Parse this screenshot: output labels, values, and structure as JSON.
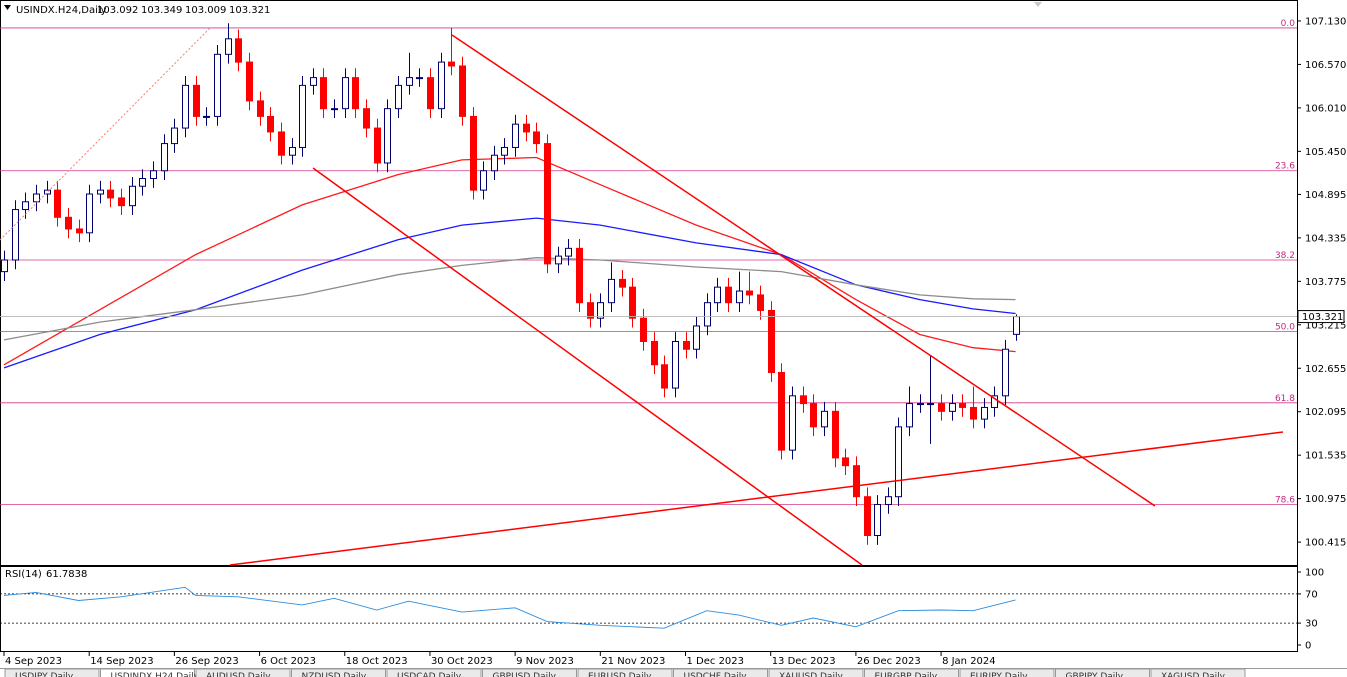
{
  "chart_data": {
    "type": "candlestick",
    "title": "USINDX.H24,Daily",
    "up_color": "#ffffff",
    "up_border": "#00006e",
    "down_color": "#ff0000",
    "ylim": [
      100.12,
      107.4
    ],
    "yticks": [
      {
        "value": 107.13,
        "label": "107.130"
      },
      {
        "value": 106.57,
        "label": "106.570"
      },
      {
        "value": 106.01,
        "label": "106.010"
      },
      {
        "value": 105.45,
        "label": "105.450"
      },
      104.895,
      104.335,
      103.775,
      103.215,
      102.655,
      {
        "value": 102.095,
        "label": "102.095"
      },
      101.535,
      100.975,
      100.415
    ],
    "xlim": [
      -0.4,
      121.4
    ],
    "xticks": [
      {
        "value": 0,
        "label": "4 Sep 2023"
      },
      {
        "value": 8,
        "label": "14 Sep 2023"
      },
      {
        "value": 16,
        "label": "26 Sep 2023"
      },
      {
        "value": 24,
        "label": "6 Oct 2023"
      },
      {
        "value": 32,
        "label": "18 Oct 2023"
      },
      {
        "value": 40,
        "label": "30 Oct 2023"
      },
      {
        "value": 48,
        "label": "9 Nov 2023"
      },
      {
        "value": 56,
        "label": "21 Nov 2023"
      },
      {
        "value": 64,
        "label": "1 Dec 2023"
      },
      {
        "value": 72,
        "label": "13 Dec 2023"
      },
      {
        "value": 80,
        "label": "26 Dec 2023"
      },
      {
        "value": 88,
        "label": "8 Jan 2024"
      }
    ],
    "open": [
      103.9,
      104.05,
      104.7,
      104.8,
      104.9,
      104.95,
      104.6,
      104.45,
      104.4,
      104.9,
      104.95,
      104.85,
      104.75,
      105.0,
      105.1,
      105.2,
      105.55,
      105.75,
      106.3,
      105.9,
      105.9,
      106.7,
      106.9,
      106.6,
      106.1,
      105.9,
      105.7,
      105.4,
      105.5,
      106.3,
      106.4,
      106.0,
      106.0,
      106.4,
      106.0,
      105.75,
      105.3,
      106.0,
      106.3,
      106.4,
      106.4,
      106.0,
      106.6,
      106.55,
      105.9,
      104.95,
      105.2,
      105.4,
      105.5,
      105.8,
      105.7,
      105.55,
      104.0,
      104.1,
      104.2,
      103.5,
      103.3,
      103.5,
      103.8,
      103.7,
      103.3,
      103.0,
      102.7,
      102.4,
      103.0,
      102.9,
      103.2,
      103.5,
      103.7,
      103.5,
      103.65,
      103.6,
      103.4,
      102.6,
      101.6,
      102.3,
      102.2,
      101.9,
      102.1,
      101.5,
      101.4,
      101.0,
      100.5,
      100.9,
      101.0,
      101.9,
      102.2,
      102.2,
      102.2,
      102.1,
      102.2,
      102.15,
      102.0,
      102.15,
      102.3,
      103.092
    ],
    "high": [
      104.17,
      104.82,
      104.92,
      105.02,
      105.07,
      105.07,
      104.72,
      104.57,
      105.02,
      105.07,
      105.07,
      104.97,
      105.12,
      105.22,
      105.32,
      105.67,
      105.87,
      106.42,
      106.42,
      106.02,
      106.82,
      107.1,
      107.02,
      106.72,
      106.22,
      106.02,
      105.82,
      105.62,
      106.42,
      106.52,
      106.52,
      106.12,
      106.52,
      106.52,
      106.12,
      105.87,
      106.12,
      106.42,
      106.72,
      106.52,
      106.52,
      106.72,
      107.04,
      106.67,
      106.02,
      105.32,
      105.52,
      105.62,
      105.92,
      105.92,
      105.82,
      105.67,
      104.22,
      104.32,
      104.32,
      103.62,
      103.62,
      104.02,
      103.92,
      103.82,
      103.42,
      103.12,
      102.82,
      103.12,
      103.12,
      103.32,
      103.62,
      103.82,
      103.82,
      103.9,
      103.9,
      103.72,
      103.52,
      102.72,
      102.42,
      102.42,
      102.32,
      102.22,
      102.22,
      101.62,
      101.52,
      101.12,
      101.02,
      101.12,
      102.02,
      102.42,
      102.32,
      102.82,
      102.32,
      102.32,
      102.32,
      102.42,
      102.27,
      102.42,
      103.02,
      103.349
    ],
    "low": [
      103.78,
      103.93,
      104.58,
      104.68,
      104.78,
      104.48,
      104.33,
      104.28,
      104.28,
      104.78,
      104.73,
      104.63,
      104.63,
      104.88,
      104.98,
      105.08,
      105.43,
      105.63,
      105.78,
      105.78,
      105.78,
      106.58,
      106.48,
      105.98,
      105.78,
      105.58,
      105.28,
      105.28,
      105.38,
      106.18,
      105.88,
      105.88,
      105.88,
      105.88,
      105.63,
      105.18,
      105.18,
      105.88,
      106.18,
      106.28,
      105.88,
      105.88,
      106.43,
      105.78,
      104.83,
      104.83,
      105.08,
      105.28,
      105.38,
      105.58,
      105.43,
      103.88,
      103.88,
      103.98,
      103.38,
      103.18,
      103.18,
      103.38,
      103.58,
      103.18,
      102.88,
      102.58,
      102.28,
      102.28,
      102.78,
      102.78,
      103.08,
      103.38,
      103.38,
      103.38,
      103.48,
      103.28,
      102.48,
      101.48,
      101.48,
      102.08,
      101.78,
      101.78,
      101.38,
      101.28,
      100.88,
      100.38,
      100.38,
      100.78,
      100.88,
      101.78,
      102.08,
      101.68,
      101.98,
      101.98,
      102.03,
      101.88,
      101.88,
      102.03,
      102.18,
      103.009
    ],
    "close": [
      104.05,
      104.7,
      104.8,
      104.9,
      104.95,
      104.6,
      104.45,
      104.4,
      104.9,
      104.95,
      104.85,
      104.75,
      105.0,
      105.1,
      105.2,
      105.55,
      105.75,
      106.3,
      105.9,
      105.9,
      106.7,
      106.9,
      106.6,
      106.1,
      105.9,
      105.7,
      105.4,
      105.5,
      106.3,
      106.4,
      106.0,
      106.0,
      106.4,
      106.0,
      105.75,
      105.3,
      106.0,
      106.3,
      106.4,
      106.4,
      106.0,
      106.6,
      106.55,
      105.9,
      104.95,
      105.2,
      105.4,
      105.5,
      105.8,
      105.7,
      105.55,
      104.0,
      104.1,
      104.2,
      103.5,
      103.3,
      103.5,
      103.8,
      103.7,
      103.3,
      103.0,
      102.7,
      102.4,
      103.0,
      102.9,
      103.2,
      103.5,
      103.7,
      103.5,
      103.65,
      103.6,
      103.4,
      102.6,
      101.6,
      102.3,
      102.2,
      101.9,
      102.1,
      101.5,
      101.4,
      101.0,
      100.5,
      100.9,
      101.0,
      101.9,
      102.2,
      102.2,
      102.2,
      102.1,
      102.2,
      102.15,
      102.0,
      102.15,
      102.3,
      102.9,
      103.321
    ],
    "overlays": [
      {
        "color": "#ff1a1a",
        "x": [
          0,
          9,
          18,
          28,
          37,
          43,
          50,
          56,
          65,
          73,
          80,
          86,
          91,
          95
        ],
        "values": [
          102.7,
          103.41,
          104.12,
          104.76,
          105.15,
          105.34,
          105.37,
          105.02,
          104.5,
          104.12,
          103.54,
          103.09,
          102.92,
          102.87
        ]
      },
      {
        "color": "#1a1aff",
        "x": [
          0,
          9,
          18,
          28,
          37,
          43,
          50,
          56,
          65,
          73,
          80,
          86,
          91,
          95
        ],
        "values": [
          102.66,
          103.09,
          103.41,
          103.92,
          104.31,
          104.5,
          104.59,
          104.5,
          104.27,
          104.12,
          103.73,
          103.54,
          103.42,
          103.36
        ]
      },
      {
        "color": "#8c8c8c",
        "x": [
          0,
          9,
          18,
          28,
          37,
          43,
          50,
          56,
          65,
          73,
          80,
          86,
          91,
          95
        ],
        "values": [
          103.02,
          103.25,
          103.41,
          103.6,
          103.86,
          103.98,
          104.08,
          104.05,
          103.96,
          103.9,
          103.73,
          103.6,
          103.55,
          103.54
        ]
      }
    ],
    "fib_levels": [
      {
        "value": 107.04,
        "label": "0.0"
      },
      {
        "value": 105.2,
        "label": "23.6"
      },
      {
        "value": 104.05,
        "label": "38.2"
      },
      {
        "value": 103.13,
        "label": "50.0"
      },
      {
        "value": 102.21,
        "label": "61.8"
      },
      {
        "value": 100.9,
        "label": "78.6"
      }
    ],
    "fib_color": "#d4388c",
    "rsi": {
      "title": "RSI(14)",
      "color": "#2a8de0",
      "x": [
        0,
        3,
        7,
        11,
        17,
        18,
        22,
        28,
        31,
        35,
        38,
        43,
        48,
        51,
        56,
        62,
        66,
        69,
        73,
        76,
        80,
        84,
        88,
        91,
        95
      ],
      "values": [
        68,
        72,
        61,
        66,
        79,
        68,
        66,
        55,
        64,
        48,
        60,
        45,
        51,
        32,
        27,
        23,
        47,
        41,
        27,
        37,
        25,
        47,
        48,
        47,
        61.7838
      ],
      "ylim": [
        0,
        100
      ],
      "yticks": [
        100,
        70,
        30,
        0
      ],
      "levels": [
        70,
        30
      ]
    },
    "tabs": [
      "USDJPY,Daily",
      "USDINDX.H24,Daily",
      "AUDUSD,Daily",
      "NZDUSD,Daily",
      "USDCAD,Daily",
      "GBPUSD,Daily",
      "EURUSD,Daily",
      "USDCHF,Daily",
      "XAUUSD,Daily",
      "EURGBP,Daily",
      "EURJPY,Daily",
      "GBPJPY,Daily",
      "XAGUSD,Daily"
    ]
  }
}
